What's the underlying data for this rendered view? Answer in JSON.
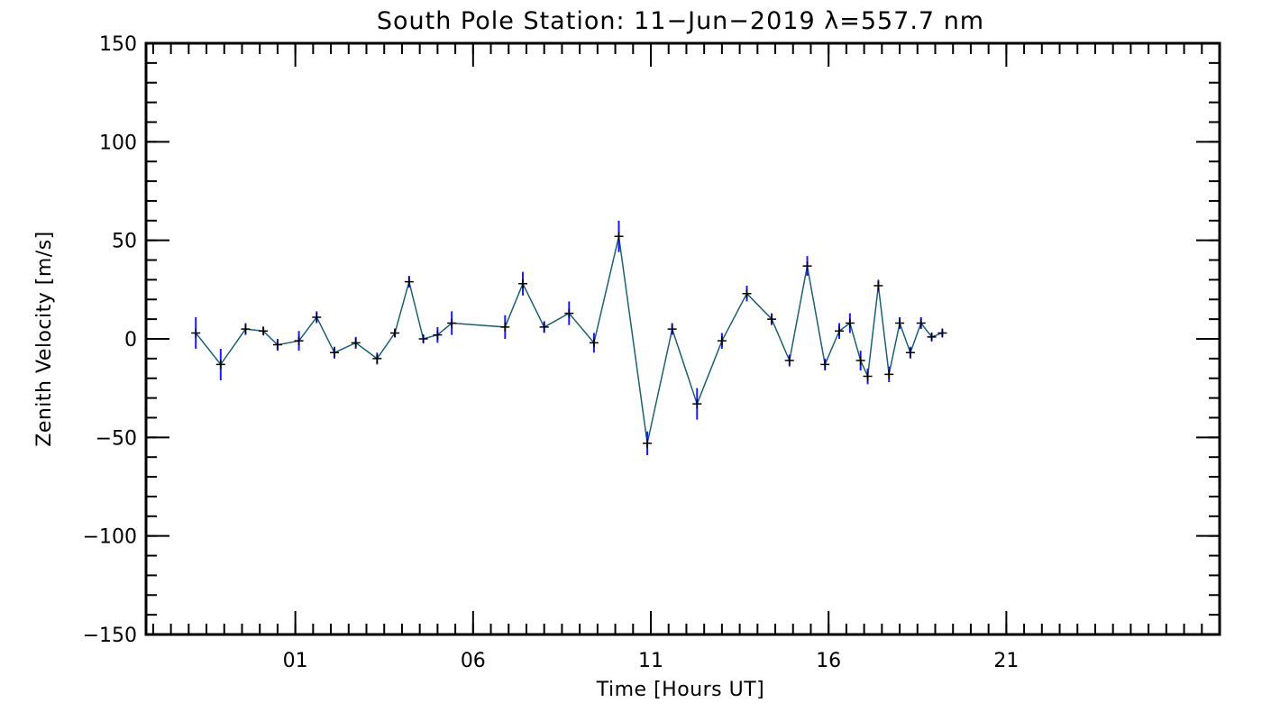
{
  "chart_data": {
    "type": "line",
    "title": "South Pole Station: 11−Jun−2019 λ=557.7 nm",
    "xlabel": "Time [Hours UT]",
    "ylabel": "Zenith Velocity [m/s]",
    "xlim": [
      -3.2,
      27
    ],
    "ylim": [
      -150,
      150
    ],
    "x_tick_values": [
      1,
      6,
      11,
      16,
      21
    ],
    "x_tick_labels": [
      "01",
      "06",
      "11",
      "16",
      "21"
    ],
    "y_tick_values": [
      150,
      100,
      50,
      0,
      -50,
      -100,
      -150
    ],
    "y_tick_labels": [
      "150",
      "100",
      "50",
      "0",
      "−50",
      "−100",
      "−150"
    ],
    "x_minor_step": 0.5,
    "y_minor_step": 10,
    "grid": false,
    "colors": {
      "line": "#1f5f6f",
      "error_bar": "#1a1aff",
      "marker": "#000000",
      "axes": "#000000"
    },
    "series": [
      {
        "name": "Zenith Velocity",
        "points": [
          {
            "x": -1.8,
            "y": 3,
            "err": 8
          },
          {
            "x": -1.1,
            "y": -13,
            "err": 8
          },
          {
            "x": -0.4,
            "y": 5,
            "err": 3
          },
          {
            "x": 0.1,
            "y": 4,
            "err": 2
          },
          {
            "x": 0.5,
            "y": -3,
            "err": 3
          },
          {
            "x": 1.1,
            "y": -1,
            "err": 5
          },
          {
            "x": 1.6,
            "y": 11,
            "err": 3
          },
          {
            "x": 2.1,
            "y": -7,
            "err": 3
          },
          {
            "x": 2.7,
            "y": -2,
            "err": 3
          },
          {
            "x": 3.3,
            "y": -10,
            "err": 3
          },
          {
            "x": 3.8,
            "y": 3,
            "err": 2
          },
          {
            "x": 4.2,
            "y": 29,
            "err": 3
          },
          {
            "x": 4.6,
            "y": 0,
            "err": 2
          },
          {
            "x": 5.0,
            "y": 2,
            "err": 4
          },
          {
            "x": 5.4,
            "y": 8,
            "err": 6
          },
          {
            "x": 6.9,
            "y": 6,
            "err": 6
          },
          {
            "x": 7.4,
            "y": 28,
            "err": 6
          },
          {
            "x": 8.0,
            "y": 6,
            "err": 3
          },
          {
            "x": 8.7,
            "y": 13,
            "err": 6
          },
          {
            "x": 9.4,
            "y": -2,
            "err": 5
          },
          {
            "x": 10.1,
            "y": 52,
            "err": 8
          },
          {
            "x": 10.9,
            "y": -53,
            "err": 6
          },
          {
            "x": 11.6,
            "y": 5,
            "err": 3
          },
          {
            "x": 12.3,
            "y": -33,
            "err": 8
          },
          {
            "x": 13.0,
            "y": -1,
            "err": 4
          },
          {
            "x": 13.7,
            "y": 23,
            "err": 4
          },
          {
            "x": 14.4,
            "y": 10,
            "err": 3
          },
          {
            "x": 14.9,
            "y": -11,
            "err": 3
          },
          {
            "x": 15.4,
            "y": 37,
            "err": 5
          },
          {
            "x": 15.9,
            "y": -13,
            "err": 3
          },
          {
            "x": 16.3,
            "y": 4,
            "err": 4
          },
          {
            "x": 16.6,
            "y": 8,
            "err": 5
          },
          {
            "x": 16.9,
            "y": -11,
            "err": 5
          },
          {
            "x": 17.1,
            "y": -19,
            "err": 4
          },
          {
            "x": 17.4,
            "y": 27,
            "err": 3
          },
          {
            "x": 17.7,
            "y": -18,
            "err": 4
          },
          {
            "x": 18.0,
            "y": 8,
            "err": 3
          },
          {
            "x": 18.3,
            "y": -7,
            "err": 3
          },
          {
            "x": 18.6,
            "y": 8,
            "err": 3
          },
          {
            "x": 18.9,
            "y": 1,
            "err": 2
          },
          {
            "x": 19.2,
            "y": 3,
            "err": 2
          }
        ]
      }
    ]
  }
}
